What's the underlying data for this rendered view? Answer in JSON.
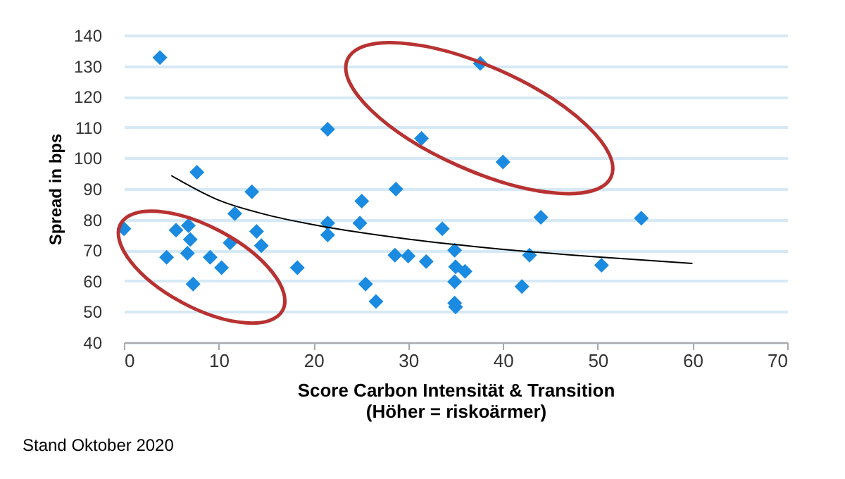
{
  "chart_data": {
    "type": "scatter",
    "xlabel": "Score Carbon Intensität & Transition\n(Höher = riskoärmer)",
    "ylabel": "Spread in bps",
    "annotations": [
      "Stand Oktober 2020"
    ],
    "xlim": [
      0,
      70
    ],
    "xticks": [
      0,
      10,
      20,
      30,
      40,
      50,
      60,
      70
    ],
    "ylim": [
      40,
      140
    ],
    "yticks": [
      40,
      50,
      60,
      70,
      80,
      90,
      100,
      110,
      120,
      130,
      140
    ],
    "grid": "y",
    "series": [
      {
        "type": "scatter",
        "marker": "diamond",
        "color": "#1a8be0",
        "x": [
          0,
          3.8,
          7.7,
          4.5,
          5.5,
          6.8,
          7.0,
          6.7,
          7.3,
          9.1,
          10.3,
          11.2,
          11.7,
          13.5,
          14.0,
          14.5,
          18.3,
          21.5,
          21.5,
          21.5,
          24.9,
          25.1,
          25.5,
          26.6,
          28.7,
          28.6,
          30,
          31.4,
          31.9,
          33.6,
          34.9,
          35,
          36,
          34.9,
          34.9,
          35,
          37.6,
          40,
          42.8,
          42,
          44,
          50.4,
          54.6
        ],
        "values": [
          77,
          132.7,
          95.4,
          67.7,
          76.5,
          78,
          73.5,
          69,
          59,
          67.7,
          64.3,
          72.4,
          81.9,
          89,
          76.1,
          71.5,
          64.3,
          109.4,
          78.8,
          75,
          78.8,
          86,
          59,
          53.3,
          89.9,
          68.4,
          68.1,
          106.4,
          66.3,
          77,
          70,
          64.6,
          63.1,
          59.7,
          52.8,
          51.5,
          130.8,
          98.7,
          68.4,
          58.2,
          80.7,
          65.1,
          80.4
        ]
      },
      {
        "type": "line",
        "marker": "none",
        "color": "#000000",
        "x": [
          5,
          10,
          15,
          20,
          30,
          40,
          50,
          60
        ],
        "values": [
          94.3,
          86.3,
          81.6,
          78.3,
          73.6,
          70.3,
          67.8,
          65.7
        ]
      }
    ]
  }
}
